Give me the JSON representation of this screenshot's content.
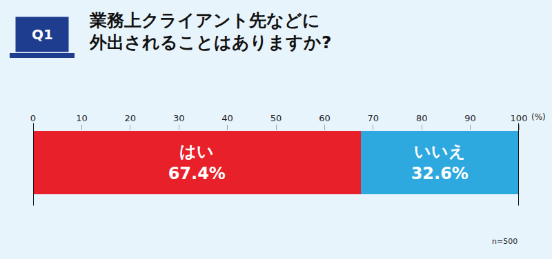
{
  "chart_data": {
    "type": "bar",
    "orientation": "horizontal",
    "stacked": true,
    "badge": "Q1",
    "title": "業務上クライアント先などに\n外出されることはありますか?",
    "categories": [
      null
    ],
    "series": [
      {
        "name": "はい",
        "color": "#e8202a",
        "values": [
          67.4
        ],
        "value_labels": [
          "67.4%"
        ]
      },
      {
        "name": "いいえ",
        "color": "#2ea9df",
        "values": [
          32.6
        ],
        "value_labels": [
          "32.6%"
        ]
      }
    ],
    "data_labels": true,
    "xlim": [
      0,
      100
    ],
    "xticks": [
      0,
      10,
      20,
      30,
      40,
      50,
      60,
      70,
      80,
      90,
      100
    ],
    "xlabel": "(%)",
    "note": "n=500",
    "grid": false
  }
}
